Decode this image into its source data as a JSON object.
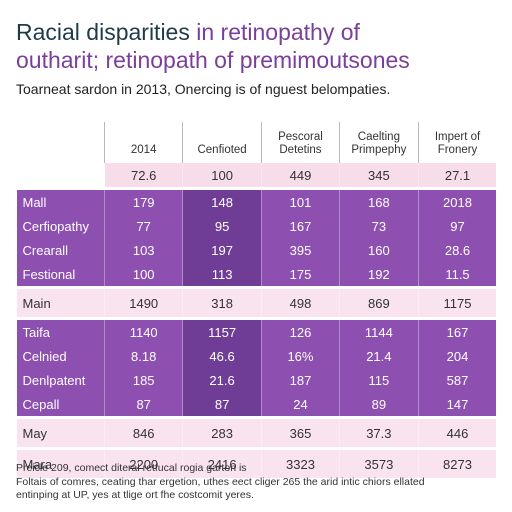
{
  "title": {
    "line1_dark": "Racial disparities ",
    "line1_accent": "in retinopathy of",
    "line2": "outharit; retinopath of premimoutsones"
  },
  "subtitle": "Toarneat sardon in 2013, Onercing is of nguest belompaties.",
  "chart_data": {
    "type": "table",
    "columns": [
      "2014",
      "Cenfioted",
      "Pescoral Detetins",
      "Caelting Primpephy",
      "Impert of Fronery"
    ],
    "header_row": {
      "label": "",
      "values": [
        "72.6",
        "100",
        "449",
        "345",
        "27.1"
      ]
    },
    "rows": [
      {
        "label": "Mall",
        "values": [
          "179",
          "148",
          "101",
          "168",
          "2018"
        ],
        "style": "purple"
      },
      {
        "label": "Cerfiopathy",
        "values": [
          "77",
          "95",
          "167",
          "73",
          "97"
        ],
        "style": "purple"
      },
      {
        "label": "Crearall",
        "values": [
          "103",
          "197",
          "395",
          "160",
          "28.6"
        ],
        "style": "purple"
      },
      {
        "label": "Festional",
        "values": [
          "100",
          "113",
          "175",
          "192",
          "11.5"
        ],
        "style": "purple"
      },
      {
        "label": "Main",
        "values": [
          "1490",
          "318",
          "498",
          "869",
          "1175"
        ],
        "style": "light"
      },
      {
        "label": "Taifa",
        "values": [
          "1140",
          "1157",
          "126",
          "1144",
          "167"
        ],
        "style": "purple"
      },
      {
        "label": "Celnied",
        "values": [
          "8.18",
          "46.6",
          "16%",
          "21.4",
          "204"
        ],
        "style": "purple"
      },
      {
        "label": "Denlpatent",
        "values": [
          "185",
          "21.6",
          "187",
          "115",
          "587"
        ],
        "style": "purple"
      },
      {
        "label": "Cepall",
        "values": [
          "87",
          "87",
          "24",
          "89",
          "147"
        ],
        "style": "purple"
      },
      {
        "label": "May",
        "values": [
          "846",
          "283",
          "365",
          "37.3",
          "446"
        ],
        "style": "light"
      },
      {
        "label": "Mara",
        "values": [
          "2200",
          "2416",
          "3323",
          "3573",
          "8273"
        ],
        "style": "light"
      }
    ]
  },
  "footer": {
    "line1": "Preicle 209, comect diteral retfucal rogia garton is",
    "line2": "Foltais of comres, ceating thar ergetion, uthes eect cliger 265 the arid intic chiors ellated",
    "line3": "entinping at UP, yes at tlige ort fhe costcomit yeres."
  }
}
